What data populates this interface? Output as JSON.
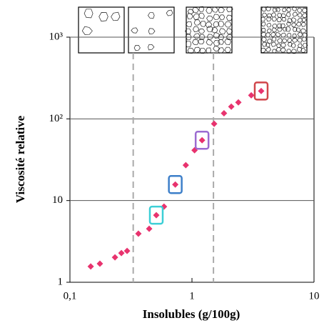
{
  "chart_data": {
    "type": "scatter",
    "x_label": "Insolubles (g/100g)",
    "y_label": "Viscosité relative",
    "log_x": true,
    "log_y": true,
    "xlim": [
      0.1,
      10
    ],
    "ylim": [
      1,
      1000
    ],
    "xticks": [
      {
        "value": 0.1,
        "label": "0,1"
      },
      1,
      10
    ],
    "yticks": [
      1,
      10,
      {
        "value": 100,
        "label": "10²"
      },
      {
        "value": 1000,
        "label": "10³"
      }
    ],
    "grid_y": true,
    "vlines": [
      0.33,
      1.5
    ],
    "color": "#e8336e",
    "x": [
      0.148,
      0.176,
      0.234,
      0.264,
      0.294,
      0.364,
      0.446,
      0.51,
      0.59,
      0.73,
      0.89,
      1.05,
      1.21,
      1.52,
      1.83,
      2.1,
      2.4,
      3.06,
      3.69
    ],
    "values": [
      1.56,
      1.69,
      2.02,
      2.28,
      2.42,
      3.93,
      4.52,
      6.62,
      8.43,
      15.7,
      27.1,
      41.3,
      54.7,
      86.9,
      117,
      141,
      159,
      194,
      219
    ],
    "highlights": [
      {
        "index": 7,
        "color": "#3ccfd6"
      },
      {
        "index": 9,
        "color": "#3d7fc9"
      },
      {
        "index": 12,
        "color": "#9b6bd1"
      },
      {
        "index": 18,
        "color": "#d0454a"
      }
    ]
  }
}
